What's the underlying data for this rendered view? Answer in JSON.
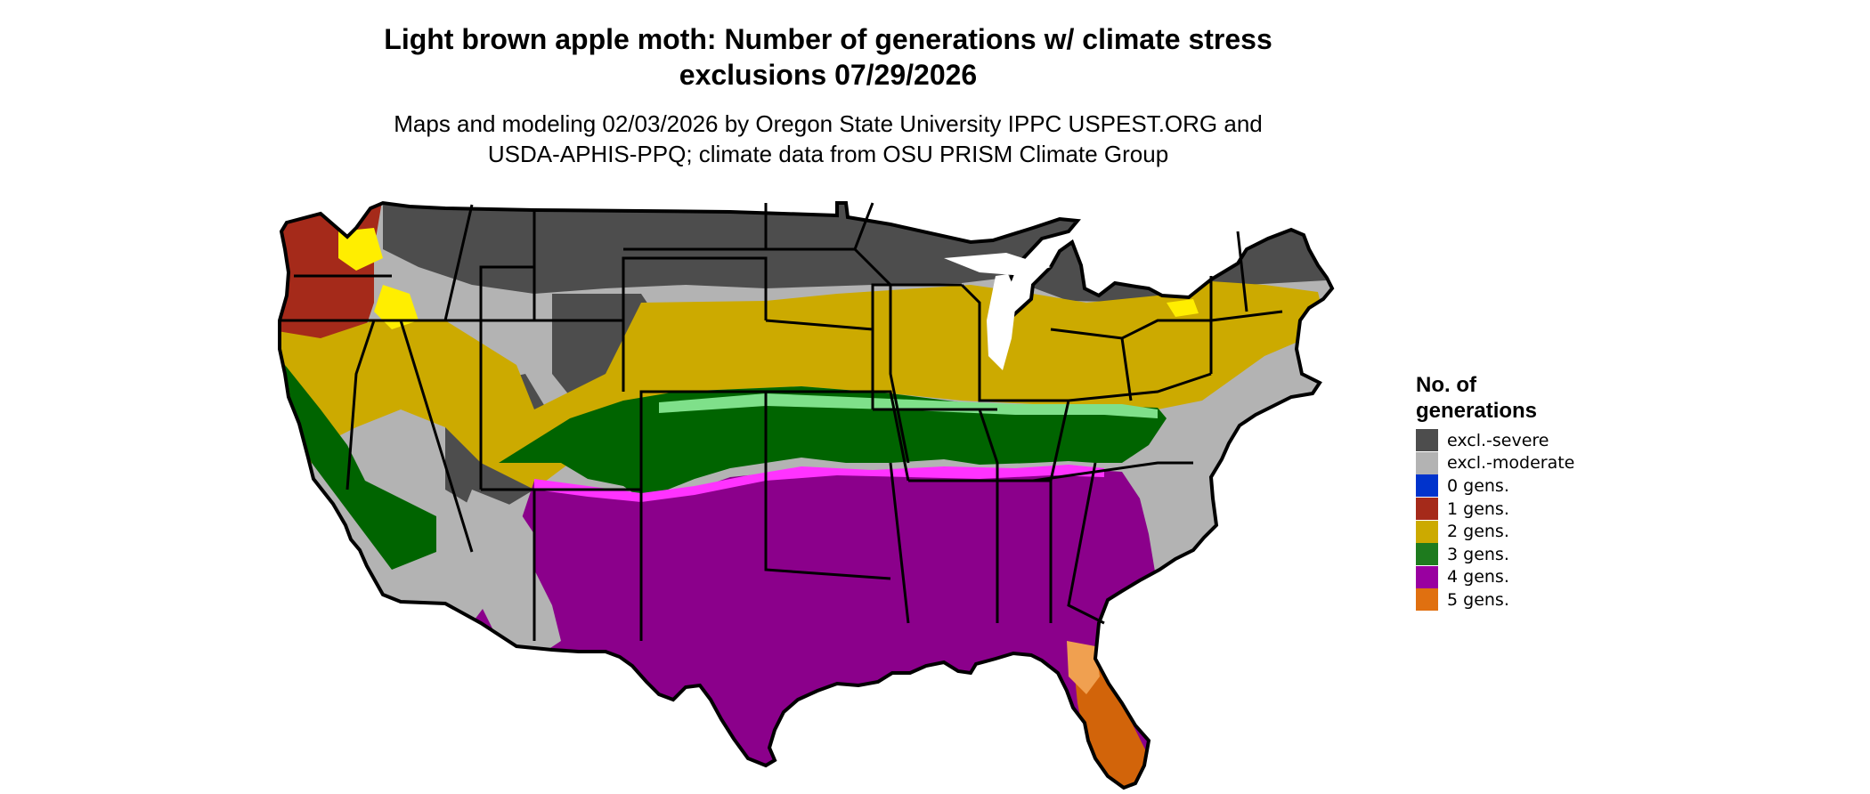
{
  "title": {
    "line1": "Light brown apple moth: Number of generations w/ climate stress",
    "line2": "exclusions 07/29/2026"
  },
  "subtitle": {
    "line1": "Maps and modeling 02/03/2026 by Oregon State University IPPC USPEST.ORG and",
    "line2": "USDA-APHIS-PPQ; climate data from OSU PRISM Climate Group"
  },
  "legend": {
    "title_line1": "No. of",
    "title_line2": "generations",
    "items": [
      {
        "label": "excl.-severe",
        "color": "#4d4d4d"
      },
      {
        "label": "excl.-moderate",
        "color": "#b3b3b3"
      },
      {
        "label": "0 gens.",
        "color": "#0033cc"
      },
      {
        "label": "1 gens.",
        "color": "#a52a1a"
      },
      {
        "label": "2 gens.",
        "color": "#ccaa00"
      },
      {
        "label": "3 gens.",
        "color": "#1e7b1e"
      },
      {
        "label": "4 gens.",
        "color": "#9900a0"
      },
      {
        "label": "5 gens.",
        "color": "#e07010"
      }
    ]
  },
  "map_colors": {
    "excl_severe": "#4d4d4d",
    "excl_moderate": "#b3b3b3",
    "gen1": "#a52a1a",
    "gen2": "#ccaa00",
    "gen2_bright": "#ffee00",
    "gen3": "#006400",
    "gen3_light": "#7fe08a",
    "gen4": "#8b008b",
    "gen4_light": "#ff33ff",
    "gen5": "#d2640a",
    "gen5_light": "#f0a050",
    "border": "#000000"
  }
}
